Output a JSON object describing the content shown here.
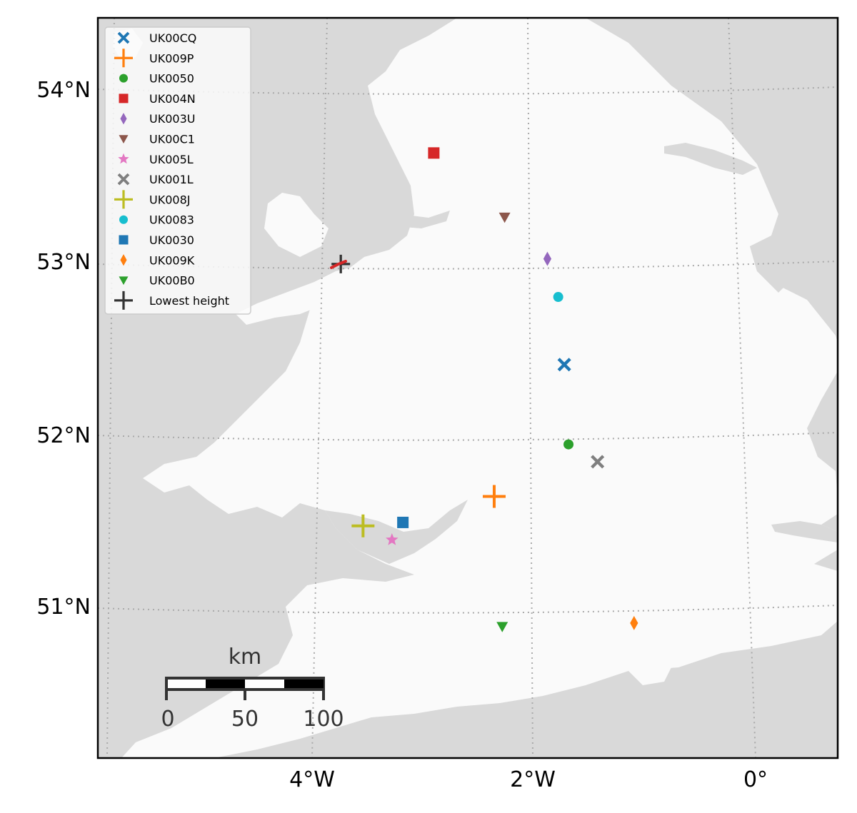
{
  "map": {
    "lat_labels": [
      "54°N",
      "53°N",
      "52°N",
      "51°N"
    ],
    "lon_labels": [
      "4°W",
      "2°W",
      "0°"
    ],
    "colors": {
      "land": "#fafafa",
      "sea": "#d9d9d9",
      "grid": "#aaaaaa",
      "frame": "#000000"
    }
  },
  "stations": [
    {
      "name": "UK00CQ",
      "marker": "x",
      "color": "#1f77b4",
      "lon": -1.68,
      "lat": 52.4
    },
    {
      "name": "UK009P",
      "marker": "plus",
      "color": "#ff7f0e",
      "lon": -2.35,
      "lat": 51.64
    },
    {
      "name": "UK0050",
      "marker": "circle",
      "color": "#2ca02c",
      "lon": -1.65,
      "lat": 51.94
    },
    {
      "name": "UK004N",
      "marker": "square",
      "color": "#d62728",
      "lon": -2.93,
      "lat": 53.62
    },
    {
      "name": "UK003U",
      "marker": "diamond",
      "color": "#9467bd",
      "lon": -1.83,
      "lat": 53.01
    },
    {
      "name": "UK00C1",
      "marker": "triangle-down",
      "color": "#8c564b",
      "lon": -2.24,
      "lat": 53.25
    },
    {
      "name": "UK005L",
      "marker": "star",
      "color": "#e377c2",
      "lon": -3.3,
      "lat": 51.39
    },
    {
      "name": "UK001L",
      "marker": "x",
      "color": "#7f7f7f",
      "lon": -1.38,
      "lat": 51.84
    },
    {
      "name": "UK008J",
      "marker": "plus",
      "color": "#bcbd22",
      "lon": -3.57,
      "lat": 51.47
    },
    {
      "name": "UK0083",
      "marker": "circle",
      "color": "#17becf",
      "lon": -1.73,
      "lat": 52.79
    },
    {
      "name": "UK0030",
      "marker": "square",
      "color": "#1f77b4",
      "lon": -3.2,
      "lat": 51.49
    },
    {
      "name": "UK009K",
      "marker": "diamond",
      "color": "#ff7f0e",
      "lon": -1.07,
      "lat": 50.91
    },
    {
      "name": "UK00B0",
      "marker": "triangle-down",
      "color": "#2ca02c",
      "lon": -2.28,
      "lat": 50.89
    }
  ],
  "lowest_height": {
    "name": "Lowest height",
    "marker": "plus",
    "color": "#333333",
    "lon": -3.82,
    "lat": 52.98
  },
  "scale_bar": {
    "title": "km",
    "labels": [
      "0",
      "50",
      "100"
    ]
  }
}
